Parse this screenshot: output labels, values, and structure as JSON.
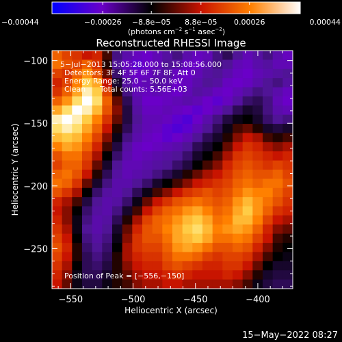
{
  "chart_data": {
    "type": "heatmap",
    "title": "Reconstructed RHESSI Image",
    "xlabel": "Heliocentric X (arcsec)",
    "ylabel": "Heliocentric Y (arcsec)",
    "xlim": [
      -565,
      -372
    ],
    "ylim": [
      -282,
      -92
    ],
    "x_ticks": [
      -550,
      -500,
      -450,
      -400
    ],
    "x_tick_labels": [
      "−550",
      "−500",
      "−450",
      "−400"
    ],
    "y_ticks": [
      -250,
      -200,
      -150,
      -100
    ],
    "y_tick_labels": [
      "−250",
      "−200",
      "−150",
      "−100"
    ],
    "colorbar": {
      "range": [
        -0.00044,
        0.00044
      ],
      "ticks": [
        -0.00044,
        -0.00026,
        -8.8e-05,
        8.8e-05,
        0.00026,
        0.00044
      ],
      "tick_labels": [
        "−0.00044",
        "−0.00026",
        "−8.8e−05",
        "8.8e−05",
        "0.00026",
        "0.00044"
      ],
      "unit_parts": [
        "(photons cm",
        "−2",
        " s",
        "−1",
        " asec",
        "−2",
        ")"
      ],
      "colors": [
        "#0000ff",
        "#6a00c8",
        "#000000",
        "#c81400",
        "#ff8000",
        "#ffffff"
      ]
    },
    "annotations": {
      "time_range": "5−Jul−2013 15:05:28.000 to 15:08:56.000",
      "detectors": "Detectors: 3F 4F 5F 6F 7F 8F, Att 0",
      "energy_range": "Energy Range: 25.0 − 50.0 keV",
      "method": "Clean",
      "total_counts": "Total counts: 5.56E+03",
      "peak": "Position of Peak = [−556,−150]"
    },
    "peak_position": [
      -556,
      -150
    ],
    "total_counts": 5560,
    "energy_range_kev": [
      25.0,
      50.0
    ],
    "grid_cols": 24,
    "grid_rows": 26,
    "values": [
      [
        0.55,
        0.45,
        0.4,
        0.3,
        0.35,
        0.1,
        -0.3,
        -0.45,
        -0.55,
        -0.6,
        -0.5,
        -0.4,
        -0.3,
        -0.45,
        -0.55,
        -0.5,
        -0.3,
        -0.2,
        -0.35,
        -0.5,
        -0.4,
        -0.3,
        -0.45,
        -0.55
      ],
      [
        0.6,
        0.5,
        0.45,
        0.55,
        0.4,
        0.05,
        -0.35,
        -0.55,
        -0.65,
        -0.6,
        -0.5,
        -0.35,
        -0.4,
        -0.55,
        -0.6,
        -0.45,
        -0.3,
        -0.35,
        -0.5,
        -0.55,
        -0.45,
        -0.4,
        -0.5,
        -0.5
      ],
      [
        0.45,
        0.4,
        0.55,
        0.7,
        0.5,
        0.15,
        -0.25,
        -0.5,
        -0.6,
        -0.55,
        -0.45,
        -0.4,
        -0.55,
        -0.6,
        -0.5,
        -0.4,
        -0.35,
        -0.45,
        -0.55,
        -0.6,
        -0.5,
        -0.45,
        -0.4,
        -0.35
      ],
      [
        0.35,
        0.45,
        0.65,
        0.85,
        0.75,
        0.3,
        -0.1,
        -0.4,
        -0.55,
        -0.5,
        -0.4,
        -0.45,
        -0.6,
        -0.55,
        -0.45,
        -0.35,
        -0.4,
        -0.55,
        -0.6,
        -0.55,
        -0.45,
        -0.35,
        -0.3,
        -0.4
      ],
      [
        0.4,
        0.55,
        0.75,
        0.95,
        0.85,
        0.45,
        0.05,
        -0.3,
        -0.5,
        -0.55,
        -0.5,
        -0.55,
        -0.6,
        -0.5,
        -0.4,
        -0.45,
        -0.55,
        -0.6,
        -0.5,
        -0.4,
        -0.3,
        -0.35,
        -0.45,
        -0.55
      ],
      [
        0.55,
        0.7,
        0.9,
        1.0,
        0.9,
        0.55,
        0.15,
        -0.2,
        -0.45,
        -0.6,
        -0.6,
        -0.55,
        -0.5,
        -0.45,
        -0.5,
        -0.6,
        -0.65,
        -0.55,
        -0.4,
        -0.25,
        -0.2,
        -0.3,
        -0.5,
        -0.6
      ],
      [
        0.75,
        0.9,
        1.0,
        0.95,
        0.8,
        0.5,
        0.2,
        -0.15,
        -0.4,
        -0.55,
        -0.55,
        -0.5,
        -0.55,
        -0.6,
        -0.65,
        -0.6,
        -0.5,
        -0.35,
        -0.2,
        -0.1,
        -0.15,
        -0.3,
        -0.45,
        -0.5
      ],
      [
        0.95,
        1.0,
        0.95,
        0.85,
        0.65,
        0.4,
        0.15,
        -0.15,
        -0.35,
        -0.5,
        -0.5,
        -0.55,
        -0.65,
        -0.7,
        -0.6,
        -0.45,
        -0.3,
        -0.15,
        -0.05,
        0.0,
        -0.1,
        -0.25,
        -0.35,
        -0.3
      ],
      [
        0.9,
        0.95,
        0.9,
        0.75,
        0.55,
        0.3,
        0.05,
        -0.2,
        -0.4,
        -0.5,
        -0.55,
        -0.65,
        -0.7,
        -0.65,
        -0.5,
        -0.35,
        -0.2,
        -0.05,
        0.1,
        0.15,
        0.05,
        -0.1,
        -0.15,
        -0.1
      ],
      [
        0.8,
        0.85,
        0.8,
        0.65,
        0.45,
        0.2,
        -0.05,
        -0.3,
        -0.45,
        -0.55,
        -0.6,
        -0.65,
        -0.6,
        -0.5,
        -0.35,
        -0.2,
        -0.1,
        0.05,
        0.2,
        0.3,
        0.25,
        0.1,
        0.05,
        0.1
      ],
      [
        0.65,
        0.75,
        0.7,
        0.55,
        0.35,
        0.1,
        -0.15,
        -0.4,
        -0.55,
        -0.6,
        -0.55,
        -0.5,
        -0.45,
        -0.35,
        -0.2,
        -0.1,
        0.0,
        0.15,
        0.3,
        0.4,
        0.35,
        0.25,
        0.2,
        0.25
      ],
      [
        0.5,
        0.6,
        0.6,
        0.45,
        0.25,
        0.0,
        -0.25,
        -0.45,
        -0.55,
        -0.5,
        -0.45,
        -0.4,
        -0.35,
        -0.25,
        -0.1,
        0.0,
        0.1,
        0.25,
        0.4,
        0.45,
        0.4,
        0.35,
        0.3,
        0.35
      ],
      [
        0.45,
        0.55,
        0.55,
        0.4,
        0.15,
        -0.1,
        -0.35,
        -0.5,
        -0.5,
        -0.45,
        -0.4,
        -0.35,
        -0.25,
        -0.15,
        0.0,
        0.1,
        0.2,
        0.35,
        0.45,
        0.5,
        0.45,
        0.4,
        0.45,
        0.4
      ],
      [
        0.55,
        0.6,
        0.5,
        0.3,
        0.05,
        -0.2,
        -0.4,
        -0.5,
        -0.45,
        -0.4,
        -0.3,
        -0.2,
        -0.1,
        0.05,
        0.15,
        0.25,
        0.3,
        0.4,
        0.5,
        0.55,
        0.5,
        0.5,
        0.55,
        0.45
      ],
      [
        0.6,
        0.55,
        0.4,
        0.15,
        -0.1,
        -0.3,
        -0.45,
        -0.45,
        -0.35,
        -0.25,
        -0.1,
        0.0,
        0.1,
        0.2,
        0.3,
        0.35,
        0.4,
        0.45,
        0.55,
        0.6,
        0.55,
        0.6,
        0.6,
        0.5
      ],
      [
        0.5,
        0.4,
        0.25,
        0.0,
        -0.25,
        -0.4,
        -0.45,
        -0.35,
        -0.2,
        -0.05,
        0.1,
        0.2,
        0.3,
        0.4,
        0.45,
        0.5,
        0.45,
        0.5,
        0.6,
        0.7,
        0.65,
        0.65,
        0.55,
        0.45
      ],
      [
        0.35,
        0.25,
        0.1,
        -0.15,
        -0.35,
        -0.45,
        -0.4,
        -0.25,
        -0.05,
        0.15,
        0.3,
        0.4,
        0.5,
        0.55,
        0.6,
        0.55,
        0.5,
        0.55,
        0.7,
        0.8,
        0.7,
        0.6,
        0.5,
        0.4
      ],
      [
        0.3,
        0.2,
        0.0,
        -0.25,
        -0.4,
        -0.45,
        -0.3,
        -0.1,
        0.1,
        0.3,
        0.45,
        0.55,
        0.6,
        0.7,
        0.75,
        0.65,
        0.55,
        0.6,
        0.75,
        0.85,
        0.7,
        0.55,
        0.4,
        0.35
      ],
      [
        0.35,
        0.2,
        -0.05,
        -0.3,
        -0.45,
        -0.4,
        -0.2,
        0.05,
        0.25,
        0.45,
        0.55,
        0.6,
        0.7,
        0.8,
        0.85,
        0.75,
        0.6,
        0.65,
        0.8,
        0.8,
        0.65,
        0.45,
        0.3,
        0.25
      ],
      [
        0.4,
        0.25,
        -0.05,
        -0.35,
        -0.45,
        -0.35,
        -0.1,
        0.15,
        0.35,
        0.5,
        0.55,
        0.65,
        0.75,
        0.85,
        0.9,
        0.8,
        0.65,
        0.7,
        0.75,
        0.7,
        0.55,
        0.35,
        0.2,
        0.15
      ],
      [
        0.45,
        0.3,
        0.0,
        -0.3,
        -0.4,
        -0.3,
        -0.05,
        0.2,
        0.4,
        0.5,
        0.5,
        0.6,
        0.75,
        0.8,
        0.85,
        0.75,
        0.6,
        0.6,
        0.65,
        0.6,
        0.45,
        0.3,
        0.1,
        0.05
      ],
      [
        0.5,
        0.35,
        0.05,
        -0.25,
        -0.35,
        -0.25,
        0.0,
        0.25,
        0.4,
        0.45,
        0.45,
        0.55,
        0.7,
        0.75,
        0.7,
        0.6,
        0.5,
        0.5,
        0.55,
        0.5,
        0.35,
        0.2,
        0.05,
        0.0
      ],
      [
        0.45,
        0.3,
        0.05,
        -0.2,
        -0.3,
        -0.2,
        0.05,
        0.25,
        0.35,
        0.4,
        0.4,
        0.5,
        0.6,
        0.6,
        0.55,
        0.45,
        0.4,
        0.45,
        0.45,
        0.4,
        0.25,
        0.1,
        0.0,
        -0.05
      ],
      [
        0.4,
        0.25,
        0.0,
        -0.2,
        -0.25,
        -0.15,
        0.05,
        0.2,
        0.3,
        0.35,
        0.35,
        0.45,
        0.5,
        0.45,
        0.4,
        0.35,
        0.35,
        0.4,
        0.4,
        0.3,
        0.15,
        0.0,
        -0.1,
        -0.1
      ],
      [
        0.35,
        0.2,
        -0.05,
        -0.2,
        -0.2,
        -0.1,
        0.05,
        0.15,
        0.25,
        0.3,
        0.3,
        0.35,
        0.4,
        0.35,
        0.3,
        0.3,
        0.3,
        0.35,
        0.3,
        0.2,
        0.05,
        -0.1,
        -0.15,
        -0.15
      ],
      [
        0.3,
        0.15,
        -0.05,
        -0.15,
        -0.15,
        -0.05,
        0.05,
        0.1,
        0.2,
        0.25,
        0.25,
        0.3,
        0.3,
        0.25,
        0.25,
        0.25,
        0.25,
        0.25,
        0.2,
        0.1,
        -0.05,
        -0.15,
        -0.2,
        -0.2
      ]
    ]
  },
  "footer": {
    "timestamp": "15−May−2022 08:27"
  }
}
